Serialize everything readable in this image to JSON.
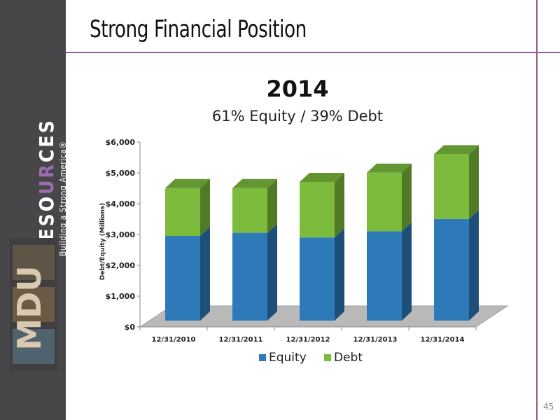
{
  "slide": {
    "title": "Strong Financial Position",
    "page_number": "45"
  },
  "brand": {
    "name_pre": "RESO",
    "name_highlight": "UR",
    "name_post": "CES",
    "tagline": "Building a Strong America®",
    "logo_text": "MDU"
  },
  "chart_data": {
    "type": "bar",
    "stacked": true,
    "three_d": true,
    "title": "2014",
    "subtitle": "61% Equity / 39% Debt",
    "categories": [
      "12/31/2010",
      "12/31/2011",
      "12/31/2012",
      "12/31/2013",
      "12/31/2014"
    ],
    "series": [
      {
        "name": "Equity",
        "color": "#2e7ab8",
        "values": [
          2750,
          2850,
          2700,
          2900,
          3300
        ]
      },
      {
        "name": "Debt",
        "color": "#7cbb3c",
        "values": [
          1550,
          1450,
          1800,
          1900,
          2100
        ]
      }
    ],
    "ylabel": "Debt/Equity (Millions)",
    "xlabel": "",
    "ylim": [
      0,
      6000
    ],
    "yticks": [
      "$0",
      "$1,000",
      "$2,000",
      "$3,000",
      "$4,000",
      "$5,000",
      "$6,000"
    ],
    "legend": "bottom",
    "grid": false
  }
}
